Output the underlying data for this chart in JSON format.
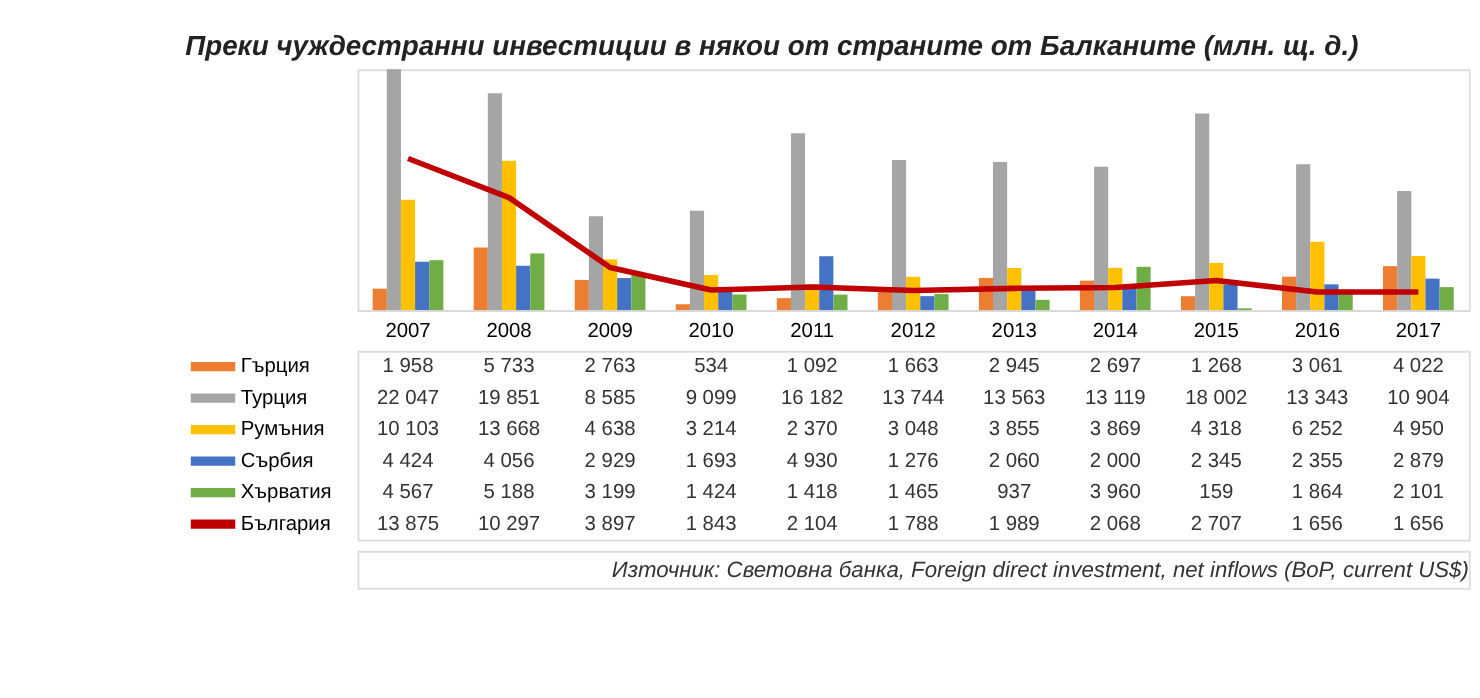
{
  "chart_data": {
    "type": "bar",
    "title": "Преки чуждестранни инвестиции в някои от страните от Балканите (млн. щ. д.)",
    "categories": [
      "2007",
      "2008",
      "2009",
      "2010",
      "2011",
      "2012",
      "2013",
      "2014",
      "2015",
      "2016",
      "2017"
    ],
    "series": [
      {
        "name": "Гърция",
        "color": "#ed7d31",
        "values": [
          1958,
          5733,
          2763,
          534,
          1092,
          1663,
          2945,
          2697,
          1268,
          3061,
          4022
        ]
      },
      {
        "name": "Турция",
        "color": "#a5a5a5",
        "values": [
          22047,
          19851,
          8585,
          9099,
          16182,
          13744,
          13563,
          13119,
          18002,
          13343,
          10904
        ]
      },
      {
        "name": "Румъния",
        "color": "#ffc000",
        "values": [
          10103,
          13668,
          4638,
          3214,
          2370,
          3048,
          3855,
          3869,
          4318,
          6252,
          4950
        ]
      },
      {
        "name": "Сърбия",
        "color": "#4472c4",
        "values": [
          4424,
          4056,
          2929,
          1693,
          4930,
          1276,
          2060,
          2000,
          2345,
          2355,
          2879
        ]
      },
      {
        "name": "Хърватия",
        "color": "#70ad47",
        "values": [
          4567,
          5188,
          3199,
          1424,
          1418,
          1465,
          937,
          3960,
          159,
          1864,
          2101
        ]
      },
      {
        "name": "България",
        "type": "line",
        "color": "#c00000",
        "values": [
          13875,
          10297,
          3897,
          1843,
          2104,
          1788,
          1989,
          2068,
          2707,
          1656,
          1656
        ]
      }
    ],
    "data_labels": true,
    "legend": "bottom left",
    "annotations": [
      "Източник: Световна банка, Foreign direct investment, net inflows (BoP, current US$)"
    ]
  }
}
